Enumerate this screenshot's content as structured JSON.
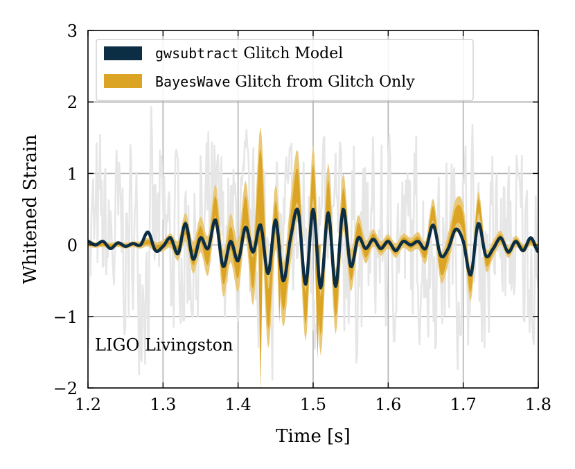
{
  "chart_data": {
    "type": "line",
    "title": "",
    "xlabel": "Time [s]",
    "ylabel": "Whitened Strain",
    "xlim": [
      1.2,
      1.8
    ],
    "ylim": [
      -2,
      3
    ],
    "xticks": [
      1.2,
      1.3,
      1.4,
      1.5,
      1.6,
      1.7,
      1.8
    ],
    "xtick_labels": [
      "1.2",
      "1.3",
      "1.4",
      "1.5",
      "1.6",
      "1.7",
      "1.8"
    ],
    "yticks": [
      -2,
      -1,
      0,
      1,
      2,
      3
    ],
    "ytick_labels": [
      "−2",
      "−1",
      "0",
      "1",
      "2",
      "3"
    ],
    "grid": true,
    "annotation": "LIGO Livingston",
    "legend": {
      "location": "top-left",
      "entries": [
        {
          "code": "gwsubtract",
          "text": " Glitch Model",
          "color": "#0b2e45"
        },
        {
          "code": "BayesWave",
          "text": " Glitch from Glitch Only",
          "color": "#dba424"
        }
      ]
    },
    "colors": {
      "data": "#e6e6e6",
      "model": "#0b2e45",
      "band_outer": "#e9c977",
      "band_inner": "#dba424",
      "grid": "#b0b0b0"
    },
    "series": [
      {
        "name": "whitened data",
        "style": "background noise",
        "x_range": [
          1.2,
          1.8
        ],
        "amplitude": 2.0
      },
      {
        "name": "gwsubtract Glitch Model",
        "x": [
          1.2,
          1.21,
          1.22,
          1.23,
          1.24,
          1.25,
          1.26,
          1.27,
          1.28,
          1.29,
          1.3,
          1.31,
          1.32,
          1.33,
          1.34,
          1.35,
          1.36,
          1.37,
          1.38,
          1.39,
          1.4,
          1.41,
          1.42,
          1.43,
          1.44,
          1.45,
          1.46,
          1.47,
          1.48,
          1.49,
          1.5,
          1.51,
          1.52,
          1.53,
          1.54,
          1.55,
          1.56,
          1.57,
          1.58,
          1.59,
          1.6,
          1.61,
          1.62,
          1.63,
          1.64,
          1.65,
          1.66,
          1.67,
          1.68,
          1.69,
          1.7,
          1.71,
          1.72,
          1.73,
          1.74,
          1.75,
          1.76,
          1.77,
          1.78,
          1.79,
          1.8
        ],
        "y": [
          0.05,
          0.0,
          0.05,
          -0.05,
          0.03,
          -0.02,
          0.02,
          0.0,
          0.18,
          -0.08,
          -0.02,
          0.1,
          -0.12,
          0.3,
          -0.2,
          0.1,
          -0.05,
          0.35,
          -0.3,
          0.05,
          -0.22,
          0.25,
          -0.1,
          0.28,
          -0.4,
          0.35,
          -0.5,
          0.1,
          0.48,
          -0.55,
          0.5,
          -0.6,
          0.45,
          -0.58,
          0.5,
          -0.3,
          0.1,
          -0.05,
          0.08,
          -0.05,
          0.05,
          -0.08,
          0.05,
          0.0,
          0.05,
          -0.05,
          0.28,
          -0.15,
          -0.05,
          0.22,
          0.05,
          -0.42,
          0.3,
          -0.15,
          -0.05,
          0.1,
          -0.1,
          0.05,
          -0.08,
          0.1,
          -0.1
        ]
      },
      {
        "name": "BayesWave Glitch from Glitch Only",
        "x": [
          1.2,
          1.21,
          1.22,
          1.23,
          1.24,
          1.25,
          1.26,
          1.27,
          1.28,
          1.29,
          1.3,
          1.31,
          1.32,
          1.33,
          1.34,
          1.35,
          1.36,
          1.37,
          1.38,
          1.39,
          1.4,
          1.41,
          1.42,
          1.43,
          1.44,
          1.45,
          1.46,
          1.47,
          1.48,
          1.49,
          1.5,
          1.51,
          1.52,
          1.53,
          1.54,
          1.55,
          1.56,
          1.57,
          1.58,
          1.59,
          1.6,
          1.61,
          1.62,
          1.63,
          1.64,
          1.65,
          1.66,
          1.67,
          1.68,
          1.69,
          1.7,
          1.71,
          1.72,
          1.73,
          1.74,
          1.75,
          1.76,
          1.77,
          1.78,
          1.79,
          1.8
        ],
        "y": [
          0.02,
          0.0,
          0.01,
          -0.01,
          0.01,
          -0.01,
          0.01,
          0.0,
          0.04,
          -0.03,
          -0.01,
          0.06,
          -0.08,
          0.25,
          -0.18,
          0.15,
          -0.15,
          0.55,
          -0.4,
          0.1,
          -0.3,
          0.5,
          -0.4,
          1.0,
          -0.9,
          0.4,
          -0.7,
          0.2,
          0.8,
          -0.9,
          0.9,
          -1.0,
          0.7,
          -0.8,
          0.6,
          -0.35,
          0.2,
          -0.1,
          0.1,
          -0.05,
          0.05,
          -0.08,
          0.06,
          0.0,
          0.06,
          -0.1,
          0.45,
          -0.3,
          -0.05,
          0.4,
          0.3,
          -0.55,
          0.55,
          -0.2,
          -0.05,
          0.1,
          -0.1,
          0.05,
          -0.05,
          0.05,
          -0.05
        ],
        "band_90": [
          0.05,
          0.04,
          0.04,
          0.04,
          0.04,
          0.04,
          0.04,
          0.05,
          0.06,
          0.07,
          0.08,
          0.1,
          0.14,
          0.2,
          0.22,
          0.25,
          0.28,
          0.3,
          0.32,
          0.34,
          0.36,
          0.4,
          0.45,
          0.65,
          0.55,
          0.45,
          0.45,
          0.45,
          0.5,
          0.45,
          0.5,
          0.55,
          0.45,
          0.45,
          0.4,
          0.3,
          0.22,
          0.16,
          0.12,
          0.1,
          0.1,
          0.1,
          0.1,
          0.1,
          0.12,
          0.16,
          0.2,
          0.22,
          0.22,
          0.24,
          0.26,
          0.24,
          0.2,
          0.16,
          0.12,
          0.1,
          0.08,
          0.08,
          0.06,
          0.06,
          0.06
        ],
        "band_50": [
          0.02,
          0.02,
          0.02,
          0.02,
          0.02,
          0.02,
          0.02,
          0.02,
          0.03,
          0.03,
          0.04,
          0.05,
          0.07,
          0.1,
          0.11,
          0.12,
          0.13,
          0.14,
          0.15,
          0.16,
          0.17,
          0.19,
          0.22,
          0.35,
          0.28,
          0.22,
          0.22,
          0.22,
          0.24,
          0.22,
          0.24,
          0.27,
          0.22,
          0.22,
          0.2,
          0.15,
          0.11,
          0.08,
          0.06,
          0.05,
          0.05,
          0.05,
          0.05,
          0.05,
          0.06,
          0.08,
          0.1,
          0.11,
          0.11,
          0.12,
          0.13,
          0.12,
          0.1,
          0.08,
          0.06,
          0.05,
          0.04,
          0.04,
          0.03,
          0.03,
          0.03
        ]
      }
    ]
  }
}
